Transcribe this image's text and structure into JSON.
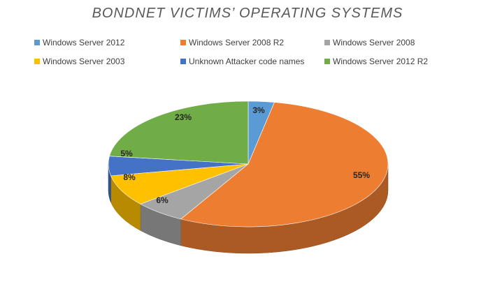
{
  "chart_data": {
    "type": "pie",
    "title": "BONDNET VICTIMS’ OPERATING SYSTEMS",
    "legend_position": "top",
    "series": [
      {
        "name": "",
        "slices": [
          {
            "label": "Windows Server 2012",
            "value": 3,
            "display": "3%",
            "color": "#5B9BD5"
          },
          {
            "label": "Windows Server 2008 R2",
            "value": 55,
            "display": "55%",
            "color": "#ED7D31"
          },
          {
            "label": "Windows Server 2008",
            "value": 6,
            "display": "6%",
            "color": "#A5A5A5"
          },
          {
            "label": "Windows Server 2003",
            "value": 8,
            "display": "8%",
            "color": "#FFC000"
          },
          {
            "label": "Unknown Attacker code names",
            "value": 5,
            "display": "5%",
            "color": "#4472C4"
          },
          {
            "label": "Windows Server 2012 R2",
            "value": 23,
            "display": "23%",
            "color": "#70AD47"
          }
        ]
      }
    ]
  }
}
